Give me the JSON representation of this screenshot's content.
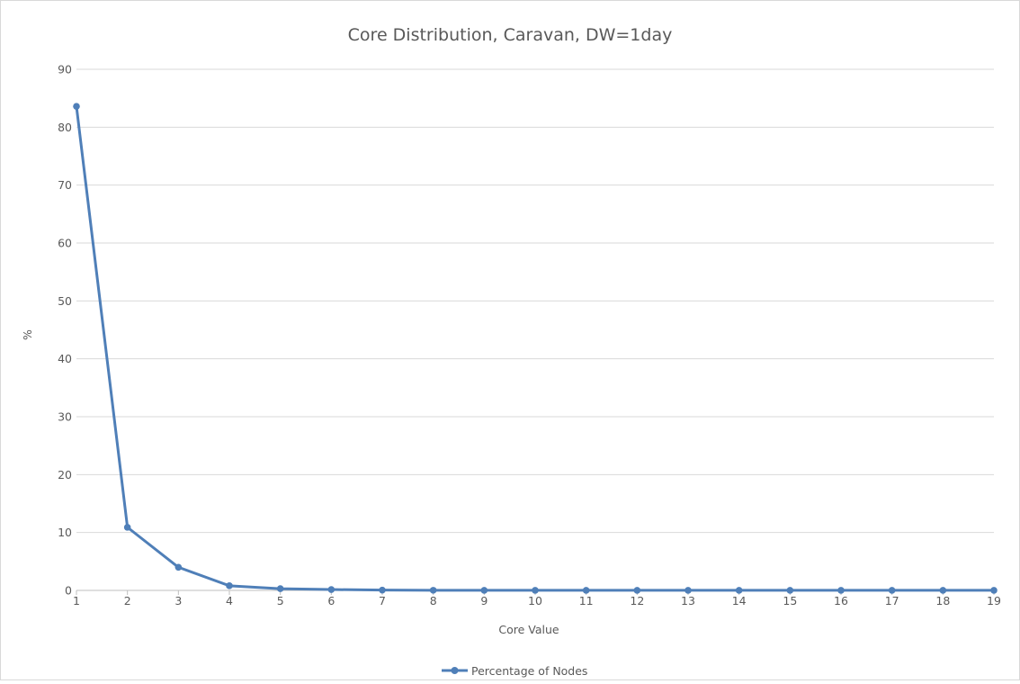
{
  "chart_data": {
    "type": "line",
    "title": "Core Distribution, Caravan, DW=1day",
    "xlabel": "Core Value",
    "ylabel": "%",
    "x": [
      1,
      2,
      3,
      4,
      5,
      6,
      7,
      8,
      9,
      10,
      11,
      12,
      13,
      14,
      15,
      16,
      17,
      18,
      19
    ],
    "series": [
      {
        "name": "Percentage of Nodes",
        "color": "#4f7fb8",
        "values": [
          83.6,
          10.9,
          4.0,
          0.8,
          0.3,
          0.15,
          0.05,
          0.02,
          0.01,
          0.01,
          0.01,
          0.01,
          0.01,
          0.01,
          0.01,
          0.01,
          0.01,
          0.01,
          0.01
        ]
      }
    ],
    "ylim": [
      0,
      90
    ],
    "yticks": [
      0,
      10,
      20,
      30,
      40,
      50,
      60,
      70,
      80,
      90
    ],
    "grid": "horizontal",
    "legend_position": "bottom"
  }
}
